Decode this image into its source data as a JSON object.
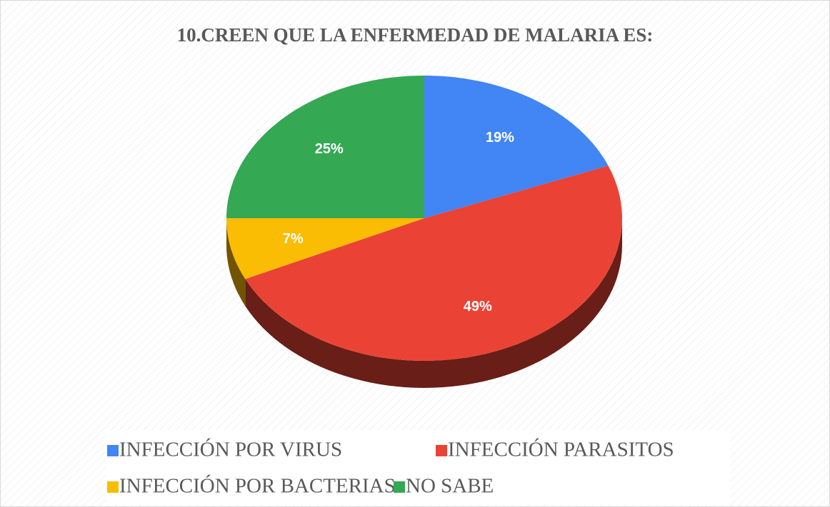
{
  "chart_data": {
    "type": "pie",
    "title": "10.CREEN QUE LA ENFERMEDAD DE MALARIA ES:",
    "categories": [
      "INFECCIÓN POR VIRUS",
      "INFECCIÓN PARASITOS",
      "INFECCIÓN POR BACTERIAS",
      "NO SABE"
    ],
    "values": [
      19,
      49,
      7,
      25
    ],
    "value_labels": [
      "19%",
      "49%",
      "7%",
      "25%"
    ],
    "colors": [
      "#4285f4",
      "#ea4335",
      "#fbbc04",
      "#34a853"
    ],
    "legend": "bottom"
  }
}
